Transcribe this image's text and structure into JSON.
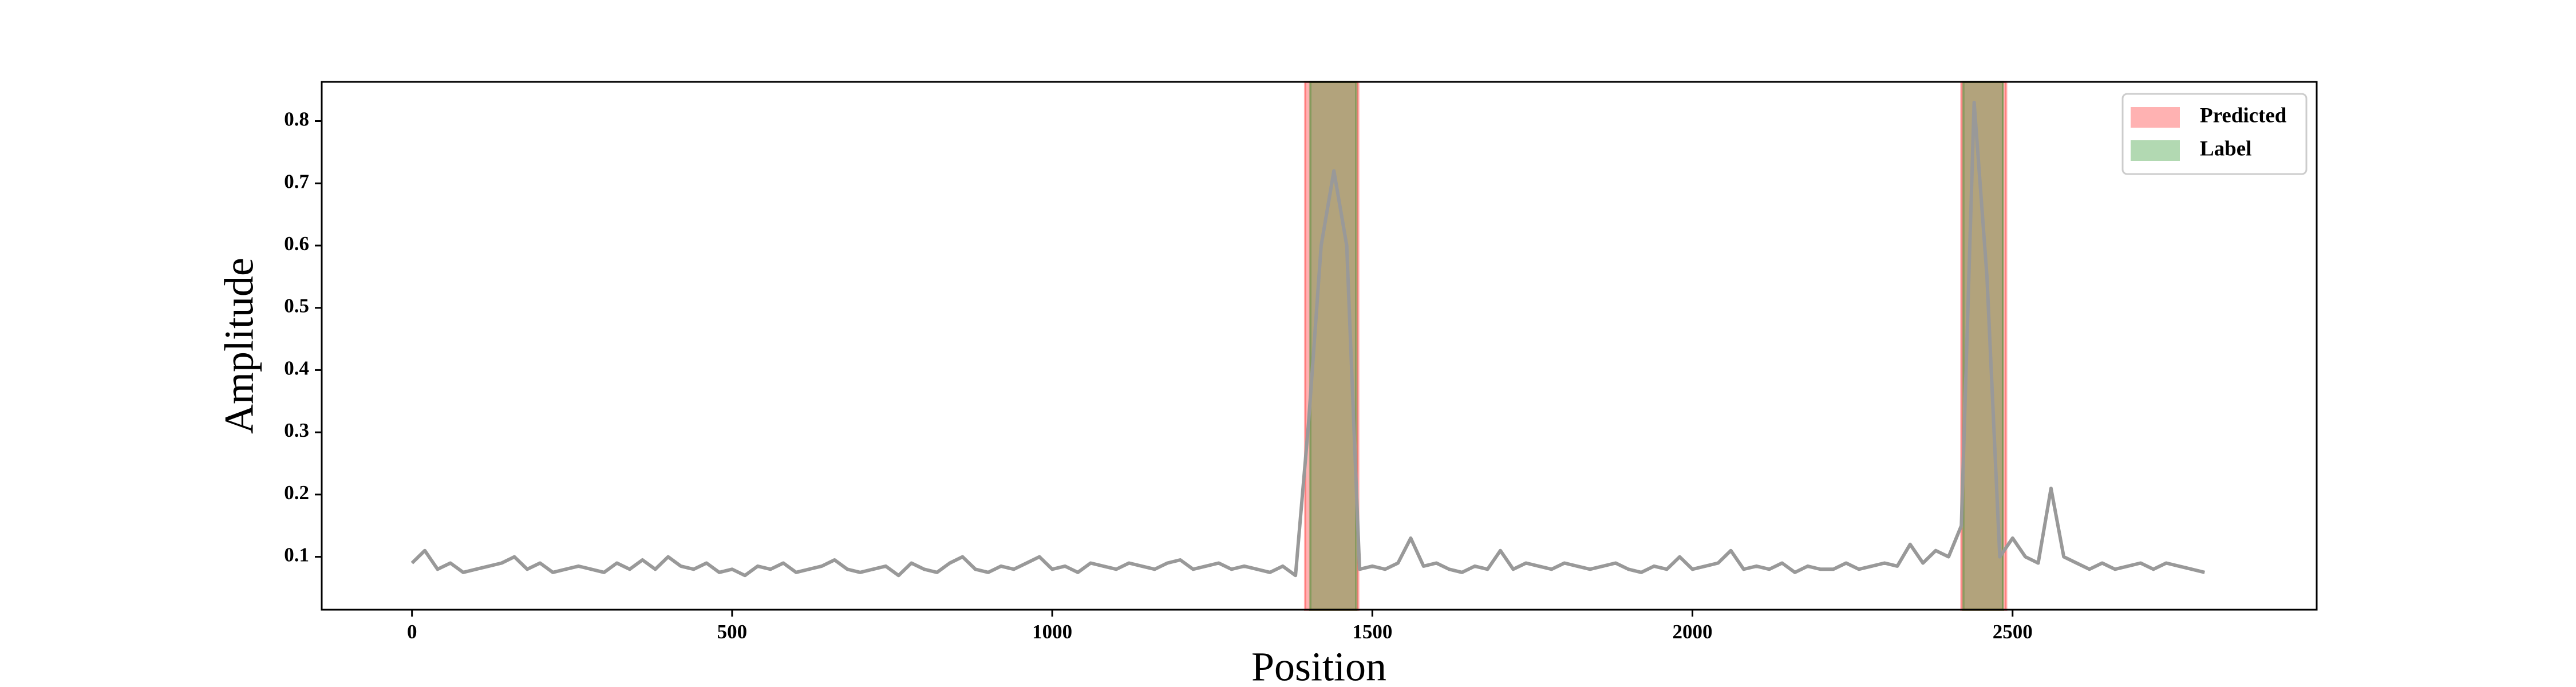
{
  "chart_data": {
    "type": "line",
    "xlabel": "Position",
    "ylabel": "Amplitude",
    "xlim": [
      -141,
      2975
    ],
    "xticks": [
      0,
      500,
      1000,
      1500,
      2000,
      2500
    ],
    "ylim": [
      0.015,
      0.863
    ],
    "yticks": [
      0.1,
      0.2,
      0.3,
      0.4,
      0.5,
      0.6,
      0.7,
      0.8
    ],
    "legend": "upper right",
    "x": [
      0,
      20,
      40,
      60,
      80,
      100,
      120,
      140,
      160,
      180,
      200,
      220,
      240,
      260,
      280,
      300,
      320,
      340,
      360,
      380,
      400,
      420,
      440,
      460,
      480,
      500,
      520,
      540,
      560,
      580,
      600,
      620,
      640,
      660,
      680,
      700,
      720,
      740,
      760,
      780,
      800,
      820,
      840,
      860,
      880,
      900,
      920,
      940,
      960,
      980,
      1000,
      1020,
      1040,
      1060,
      1080,
      1100,
      1120,
      1140,
      1160,
      1180,
      1200,
      1220,
      1240,
      1260,
      1280,
      1300,
      1320,
      1340,
      1360,
      1380,
      1400,
      1420,
      1440,
      1460,
      1480,
      1500,
      1520,
      1540,
      1560,
      1580,
      1600,
      1620,
      1640,
      1660,
      1680,
      1700,
      1720,
      1740,
      1760,
      1780,
      1800,
      1820,
      1840,
      1860,
      1880,
      1900,
      1920,
      1940,
      1960,
      1980,
      2000,
      2020,
      2040,
      2060,
      2080,
      2100,
      2120,
      2140,
      2160,
      2180,
      2200,
      2220,
      2240,
      2260,
      2280,
      2300,
      2320,
      2340,
      2360,
      2380,
      2400,
      2420,
      2440,
      2460,
      2480,
      2500,
      2520,
      2540,
      2560,
      2580,
      2600,
      2620,
      2640,
      2660,
      2680,
      2700,
      2720,
      2740,
      2760,
      2780,
      2800
    ],
    "series": [
      {
        "color": "#999999",
        "values": [
          0.09,
          0.11,
          0.08,
          0.09,
          0.075,
          0.08,
          0.085,
          0.09,
          0.1,
          0.08,
          0.09,
          0.075,
          0.08,
          0.085,
          0.08,
          0.075,
          0.09,
          0.08,
          0.095,
          0.08,
          0.1,
          0.085,
          0.08,
          0.09,
          0.075,
          0.08,
          0.07,
          0.085,
          0.08,
          0.09,
          0.075,
          0.08,
          0.085,
          0.095,
          0.08,
          0.075,
          0.08,
          0.085,
          0.07,
          0.09,
          0.08,
          0.075,
          0.09,
          0.1,
          0.08,
          0.075,
          0.085,
          0.08,
          0.09,
          0.1,
          0.08,
          0.085,
          0.075,
          0.09,
          0.085,
          0.08,
          0.09,
          0.085,
          0.08,
          0.09,
          0.095,
          0.08,
          0.085,
          0.09,
          0.08,
          0.085,
          0.08,
          0.075,
          0.085,
          0.07,
          0.31,
          0.6,
          0.72,
          0.6,
          0.08,
          0.085,
          0.08,
          0.09,
          0.13,
          0.085,
          0.09,
          0.08,
          0.075,
          0.085,
          0.08,
          0.11,
          0.08,
          0.09,
          0.085,
          0.08,
          0.09,
          0.085,
          0.08,
          0.085,
          0.09,
          0.08,
          0.075,
          0.085,
          0.08,
          0.1,
          0.08,
          0.085,
          0.09,
          0.11,
          0.08,
          0.085,
          0.08,
          0.09,
          0.075,
          0.085,
          0.08,
          0.08,
          0.09,
          0.08,
          0.085,
          0.09,
          0.085,
          0.12,
          0.09,
          0.11,
          0.1,
          0.15,
          0.83,
          0.55,
          0.1,
          0.13,
          0.1,
          0.09,
          0.21,
          0.1,
          0.09,
          0.08,
          0.09,
          0.08,
          0.085,
          0.09,
          0.08,
          0.09,
          0.085,
          0.08,
          0.075
        ]
      }
    ],
    "spans": [
      {
        "name": "Predicted",
        "color": "#ff0000",
        "alpha": 0.3,
        "regions": [
          [
            1395,
            1478
          ],
          [
            2420,
            2490
          ]
        ]
      },
      {
        "name": "Label",
        "color": "#008000",
        "alpha": 0.3,
        "regions": [
          [
            1403,
            1475
          ],
          [
            2423,
            2485
          ]
        ]
      }
    ]
  }
}
